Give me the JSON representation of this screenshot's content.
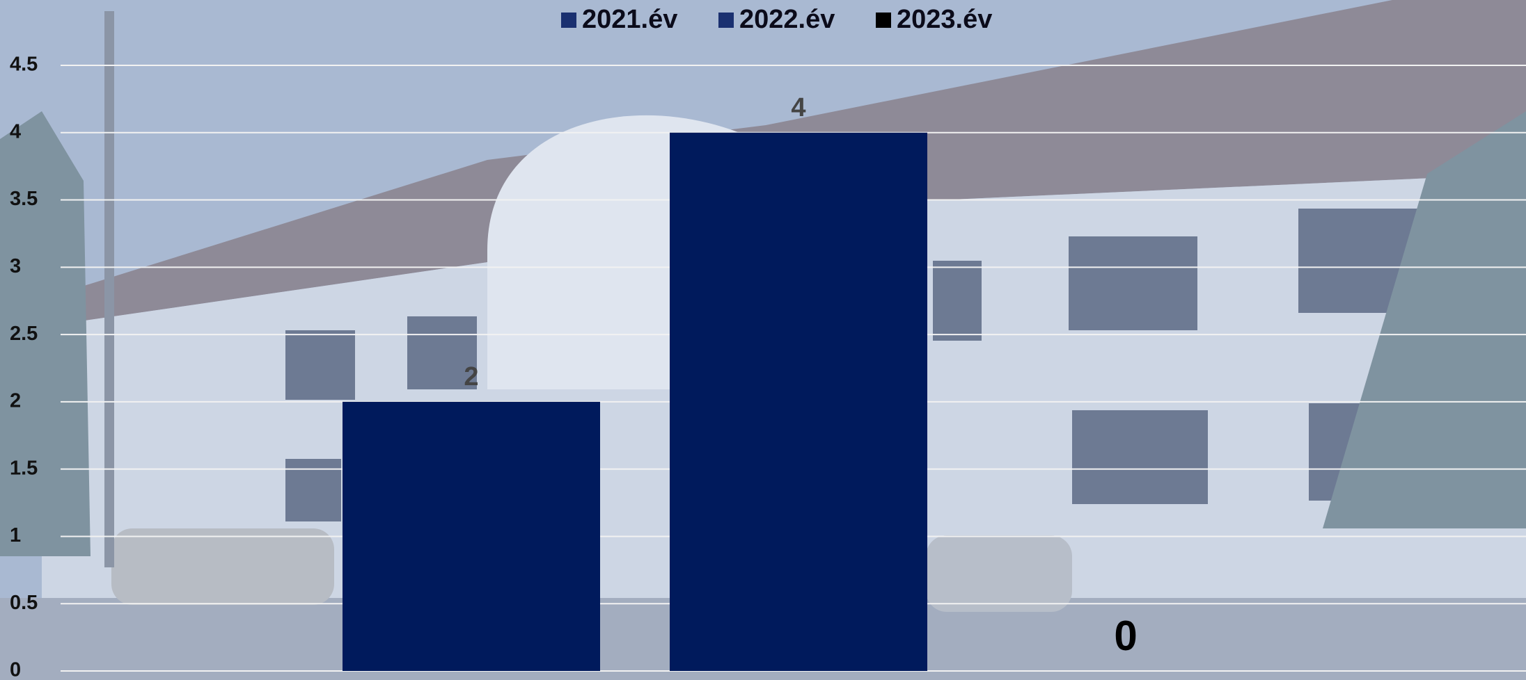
{
  "chart_data": {
    "type": "bar",
    "series": [
      {
        "name": "2021.év",
        "color": "#001a5c",
        "legend_color": "#1a3070",
        "label_color": "#444444",
        "values": [
          2
        ]
      },
      {
        "name": "2022.év",
        "color": "#001a5c",
        "legend_color": "#1a3070",
        "label_color": "#444444",
        "values": [
          4
        ]
      },
      {
        "name": "2023.év",
        "color": "#000000",
        "legend_color": "#000000",
        "label_color": "#000000",
        "values": [
          0
        ]
      }
    ],
    "ylim": [
      0,
      4.5
    ],
    "yticks": [
      0,
      0.5,
      1,
      1.5,
      2,
      2.5,
      3,
      3.5,
      4,
      4.5
    ],
    "grid": true,
    "legend": "top"
  }
}
